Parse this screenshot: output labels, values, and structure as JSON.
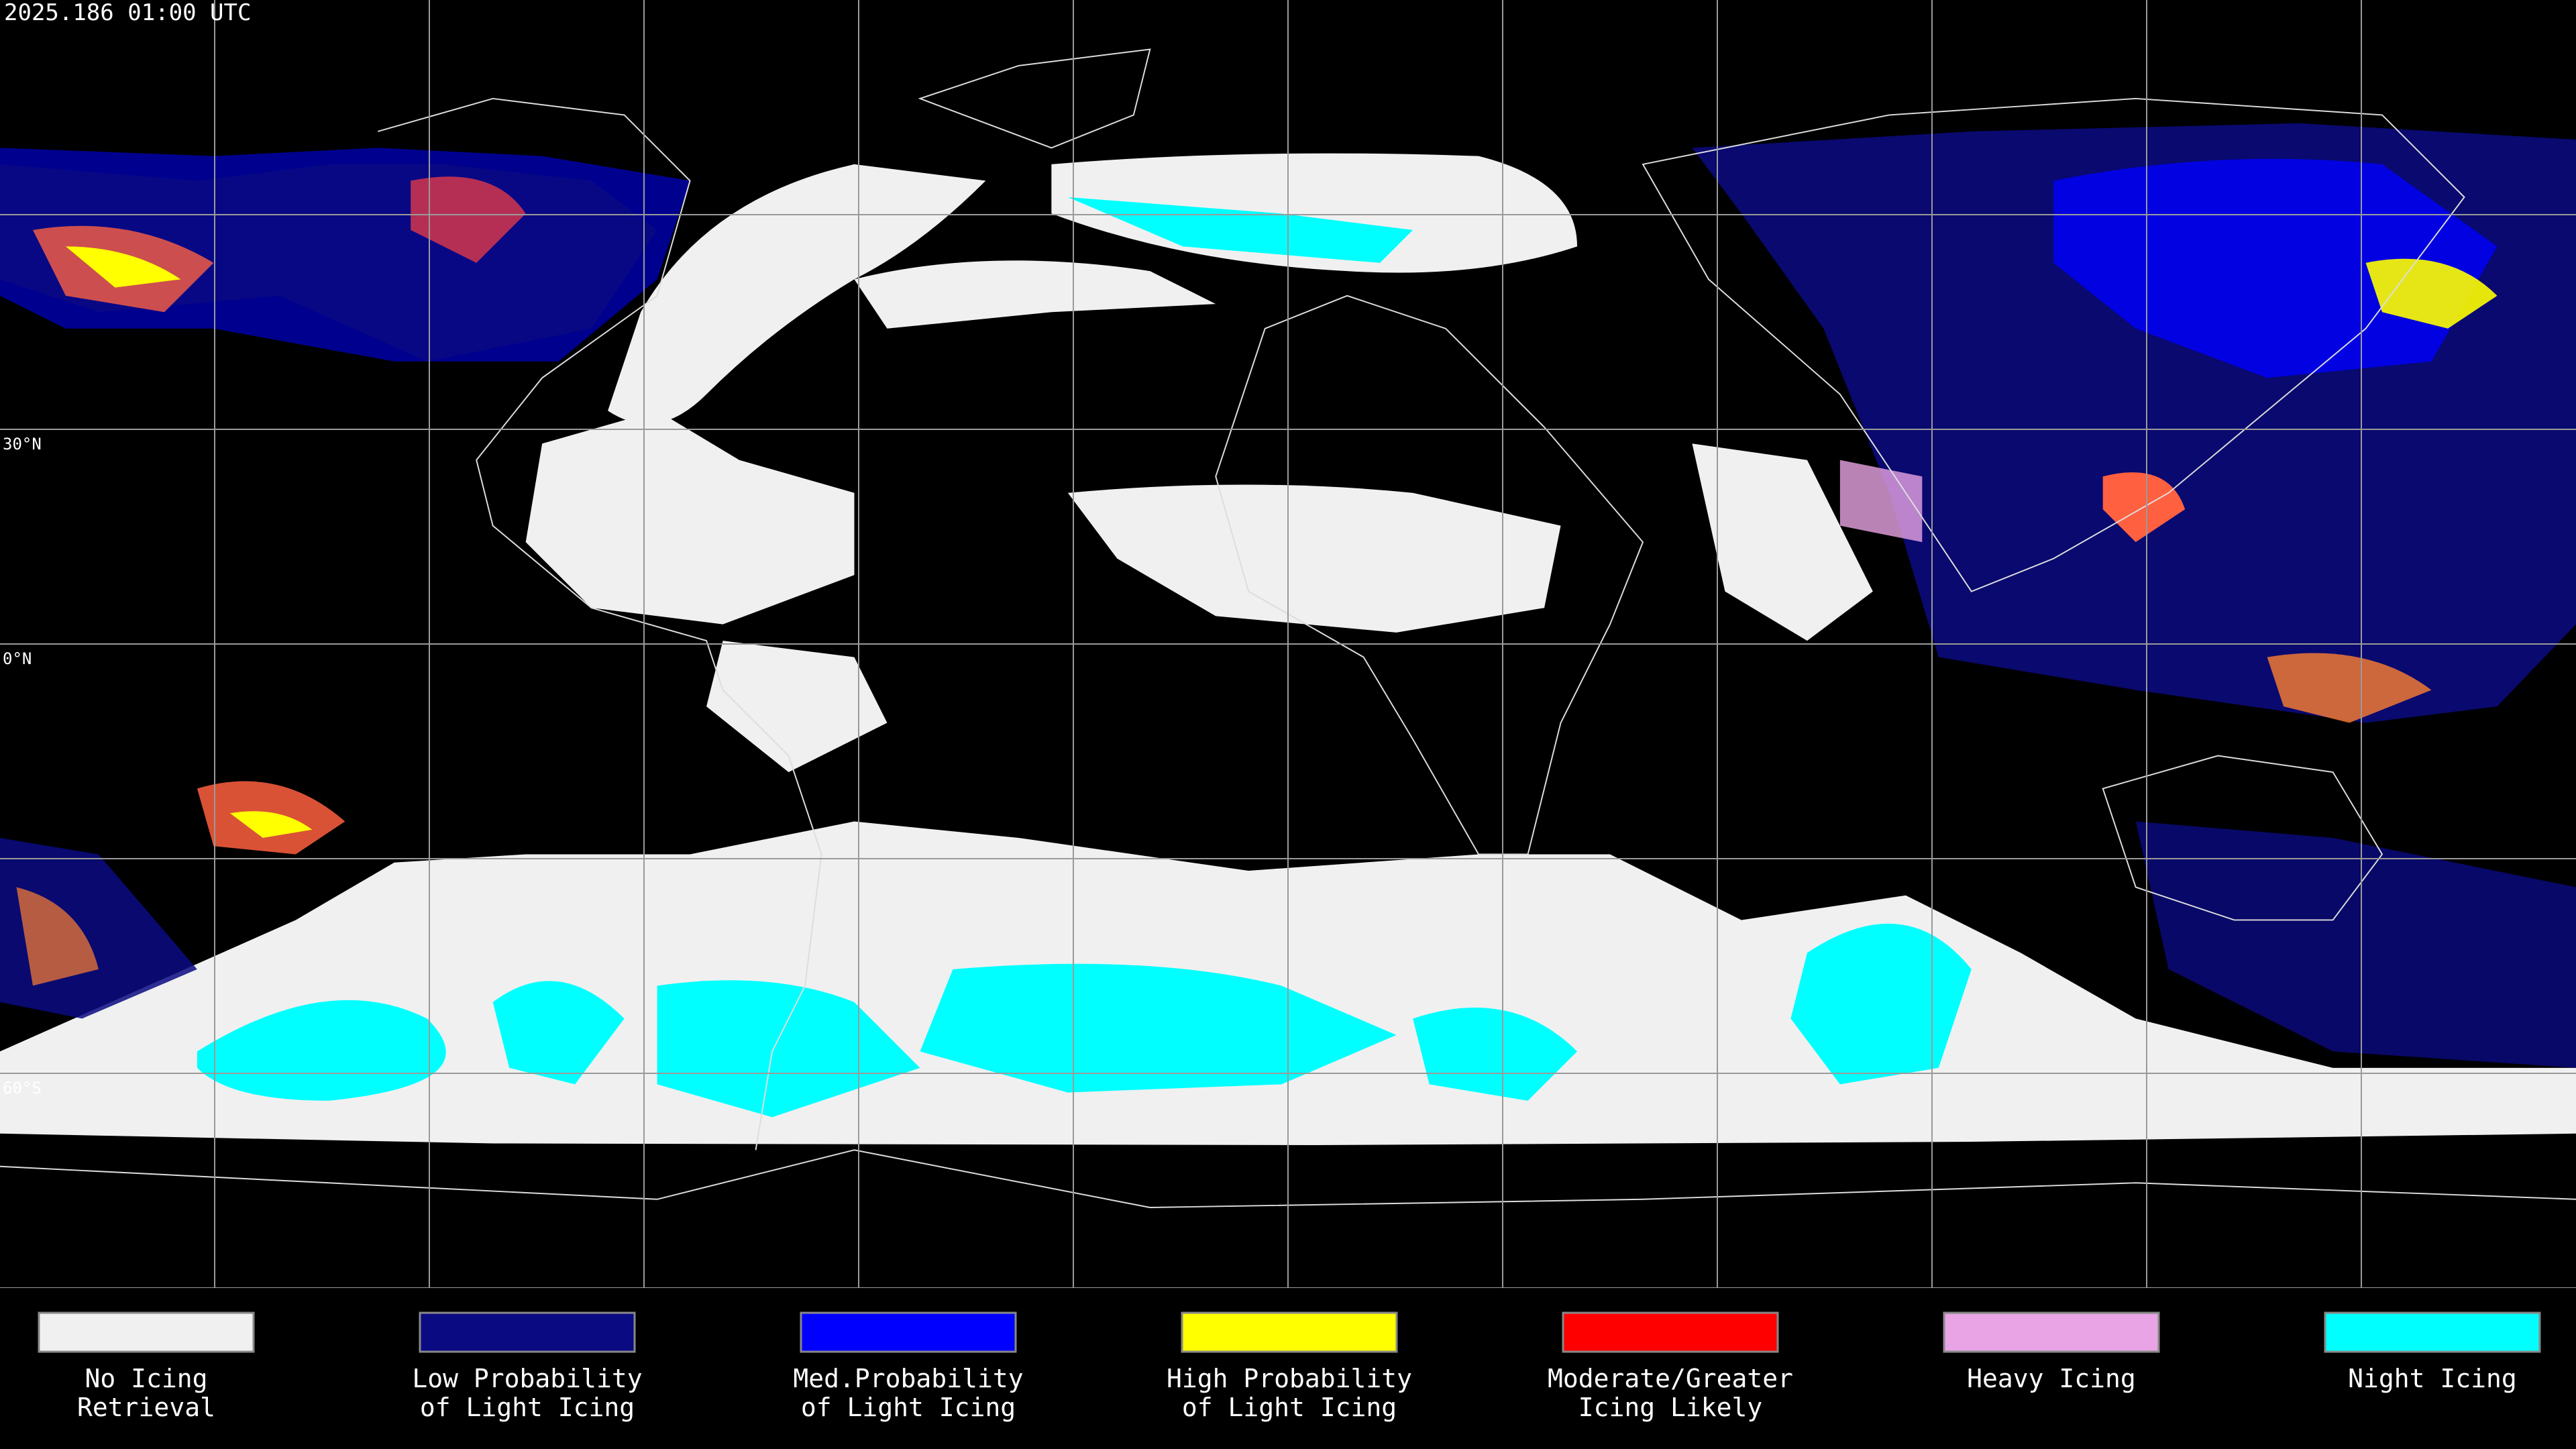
{
  "header": {
    "title": "2025.186 01:00 UTC"
  },
  "latitude_labels": [
    "30°N",
    "0°N",
    "60°S"
  ],
  "legend": [
    {
      "lines": [
        "No Icing",
        "Retrieval"
      ],
      "color": "#f0f0f0"
    },
    {
      "lines": [
        "Low Probability",
        "of Light Icing"
      ],
      "color": "#0a0a82"
    },
    {
      "lines": [
        "Med.Probability",
        "of Light Icing"
      ],
      "color": "#0000ff"
    },
    {
      "lines": [
        "High Probability",
        "of Light Icing"
      ],
      "color": "#ffff00"
    },
    {
      "lines": [
        "Moderate/Greater",
        "Icing Likely"
      ],
      "color": "#ff0000"
    },
    {
      "lines": [
        "Heavy Icing"
      ],
      "color": "#e8a4e4"
    },
    {
      "lines": [
        "Night Icing"
      ],
      "color": "#00ffff"
    }
  ]
}
